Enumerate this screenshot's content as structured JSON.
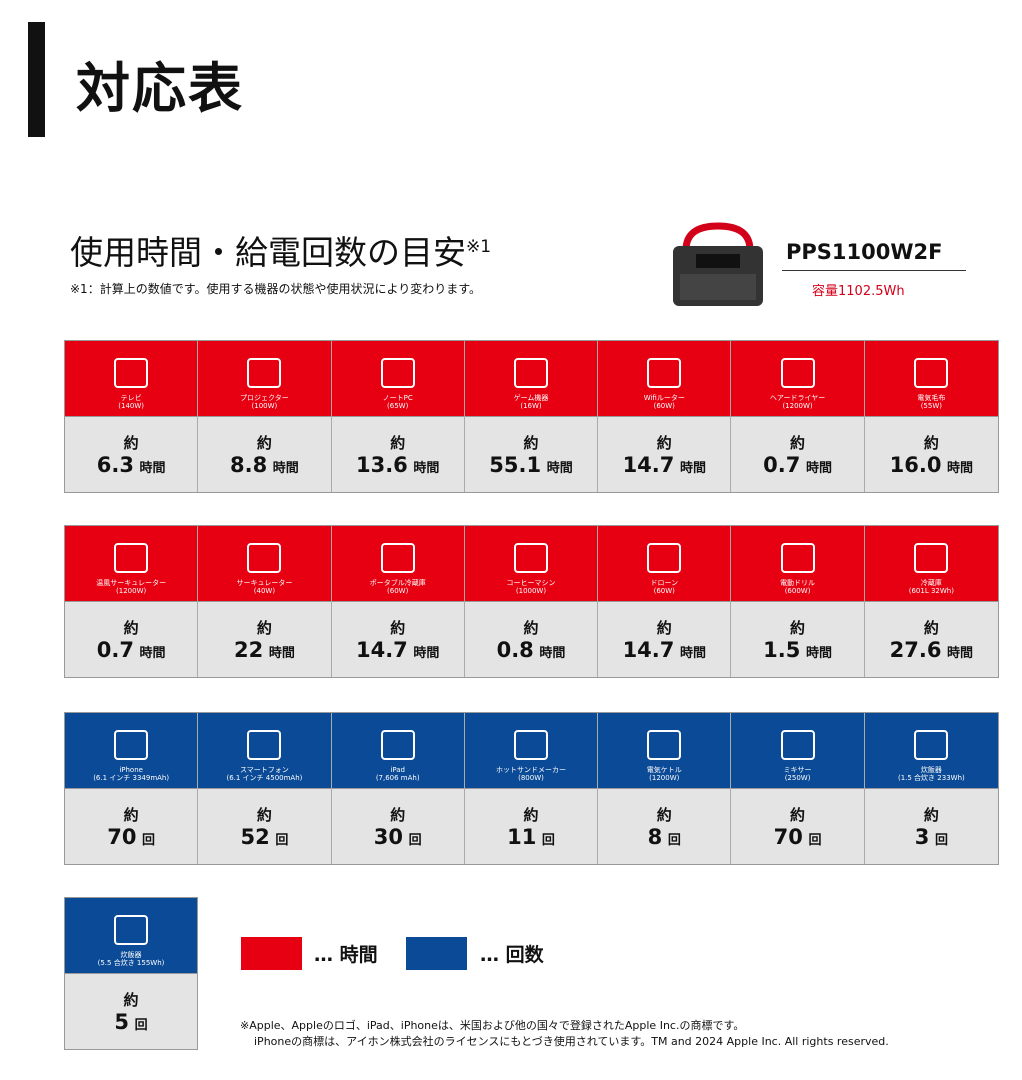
{
  "title": "対応表",
  "subtitle": "使用時間・給電回数の目安",
  "subtitle_mark": "※1",
  "note": "※1：計算上の数値です。使用する機器の状態や使用状況により変わります。",
  "product": {
    "name": "PPS1100W2F",
    "capacity": "容量1102.5Wh"
  },
  "colors": {
    "time": "#e60012",
    "count": "#0b4a96"
  },
  "rows": [
    {
      "type": "time",
      "items": [
        {
          "icon": "tv-icon",
          "label": "テレビ",
          "spec": "(140W)",
          "approx": "約",
          "value": "6.3",
          "unit": "時間"
        },
        {
          "icon": "projector-icon",
          "label": "プロジェクター",
          "spec": "(100W)",
          "approx": "約",
          "value": "8.8",
          "unit": "時間"
        },
        {
          "icon": "laptop-icon",
          "label": "ノートPC",
          "spec": "(65W)",
          "approx": "約",
          "value": "13.6",
          "unit": "時間"
        },
        {
          "icon": "game-console-icon",
          "label": "ゲーム機器",
          "spec": "(16W)",
          "approx": "約",
          "value": "55.1",
          "unit": "時間"
        },
        {
          "icon": "wifi-router-icon",
          "label": "Wifiルーター",
          "spec": "(60W)",
          "approx": "約",
          "value": "14.7",
          "unit": "時間"
        },
        {
          "icon": "hair-dryer-icon",
          "label": "ヘアードライヤー",
          "spec": "(1200W)",
          "approx": "約",
          "value": "0.7",
          "unit": "時間"
        },
        {
          "icon": "electric-blanket-icon",
          "label": "電気毛布",
          "spec": "(55W)",
          "approx": "約",
          "value": "16.0",
          "unit": "時間"
        }
      ]
    },
    {
      "type": "time",
      "items": [
        {
          "icon": "circulator-icon",
          "label": "温風サーキュレーター",
          "spec": "(1200W)",
          "approx": "約",
          "value": "0.7",
          "unit": "時間"
        },
        {
          "icon": "circulator-icon",
          "label": "サーキュレーター",
          "spec": "(40W)",
          "approx": "約",
          "value": "22",
          "unit": "時間"
        },
        {
          "icon": "portable-fridge-icon",
          "label": "ポータブル冷蔵庫",
          "spec": "(60W)",
          "approx": "約",
          "value": "14.7",
          "unit": "時間"
        },
        {
          "icon": "coffee-machine-icon",
          "label": "コーヒーマシン",
          "spec": "(1000W)",
          "approx": "約",
          "value": "0.8",
          "unit": "時間"
        },
        {
          "icon": "drone-icon",
          "label": "ドローン",
          "spec": "(60W)",
          "approx": "約",
          "value": "14.7",
          "unit": "時間"
        },
        {
          "icon": "drill-icon",
          "label": "電動ドリル",
          "spec": "(600W)",
          "approx": "約",
          "value": "1.5",
          "unit": "時間"
        },
        {
          "icon": "refrigerator-icon",
          "label": "冷蔵庫",
          "spec": "(601L 32Wh)",
          "approx": "約",
          "value": "27.6",
          "unit": "時間"
        }
      ]
    },
    {
      "type": "count",
      "items": [
        {
          "icon": "iphone-icon",
          "label": "iPhone",
          "spec": "(6.1 インチ 3349mAh)",
          "approx": "約",
          "value": "70",
          "unit": "回"
        },
        {
          "icon": "smartphone-icon",
          "label": "スマートフォン",
          "spec": "(6.1 インチ 4500mAh)",
          "approx": "約",
          "value": "52",
          "unit": "回"
        },
        {
          "icon": "ipad-icon",
          "label": "iPad",
          "spec": "(7,606 mAh)",
          "approx": "約",
          "value": "30",
          "unit": "回"
        },
        {
          "icon": "sandwich-maker-icon",
          "label": "ホットサンドメーカー",
          "spec": "(800W)",
          "approx": "約",
          "value": "11",
          "unit": "回"
        },
        {
          "icon": "kettle-icon",
          "label": "電気ケトル",
          "spec": "(1200W)",
          "approx": "約",
          "value": "8",
          "unit": "回"
        },
        {
          "icon": "blender-icon",
          "label": "ミキサー",
          "spec": "(250W)",
          "approx": "約",
          "value": "70",
          "unit": "回"
        },
        {
          "icon": "rice-cooker-icon",
          "label": "炊飯器",
          "spec": "(1.5 合炊き 233Wh)",
          "approx": "約",
          "value": "3",
          "unit": "回"
        }
      ]
    },
    {
      "type": "count",
      "items": [
        {
          "icon": "rice-cooker-icon",
          "label": "炊飯器",
          "spec": "(5.5 合炊き 155Wh)",
          "approx": "約",
          "value": "5",
          "unit": "回"
        }
      ]
    }
  ],
  "legend": [
    {
      "text": "… 時間"
    },
    {
      "text": "… 回数"
    }
  ],
  "footnote": [
    "※Apple、Appleのロゴ、iPad、iPhoneは、米国および他の国々で登録されたApple Inc.の商標です。",
    "iPhoneの商標は、アイホン株式会社のライセンスにもとづき使用されています。TM and 2024 Apple Inc. All rights reserved."
  ]
}
